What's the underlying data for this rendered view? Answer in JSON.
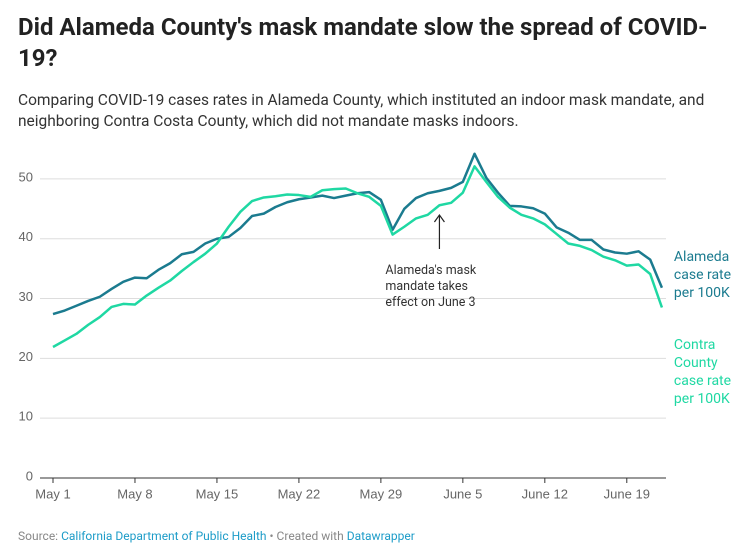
{
  "chart_data": {
    "type": "line",
    "title": "Did Alameda County's mask mandate slow the spread of COVID-19?",
    "subtitle": "Comparing COVID-19 cases rates in Alameda County, which instituted an indoor mask mandate, and neighboring Contra Costa County, which did not mandate masks indoors.",
    "x": [
      "May 1",
      "May 2",
      "May 3",
      "May 4",
      "May 5",
      "May 6",
      "May 7",
      "May 8",
      "May 9",
      "May 10",
      "May 11",
      "May 12",
      "May 13",
      "May 14",
      "May 15",
      "May 16",
      "May 17",
      "May 18",
      "May 19",
      "May 20",
      "May 21",
      "May 22",
      "May 23",
      "May 24",
      "May 25",
      "May 26",
      "May 27",
      "May 28",
      "May 29",
      "May 30",
      "May 31",
      "June 1",
      "June 2",
      "June 3",
      "June 4",
      "June 5",
      "June 6",
      "June 7",
      "June 8",
      "June 9",
      "June 10",
      "June 11",
      "June 12",
      "June 13",
      "June 14",
      "June 15",
      "June 16",
      "June 17",
      "June 18",
      "June 19",
      "June 20",
      "June 21",
      "June 22"
    ],
    "xticks": [
      "May 1",
      "May 8",
      "May 15",
      "May 22",
      "May 29",
      "June 5",
      "June 12",
      "June 19"
    ],
    "series": [
      {
        "name": "Alameda case rate per 100K",
        "color": "#1b7b8f",
        "values": [
          27.4,
          28.0,
          28.8,
          29.6,
          30.3,
          31.6,
          32.8,
          33.5,
          33.4,
          34.8,
          35.9,
          37.4,
          37.8,
          39.2,
          40.0,
          40.3,
          41.8,
          43.8,
          44.2,
          45.3,
          46.1,
          46.6,
          46.9,
          47.2,
          46.8,
          47.2,
          47.6,
          47.8,
          46.5,
          41.5,
          45.0,
          46.8,
          47.6,
          48.0,
          48.5,
          49.5,
          54.2,
          50.2,
          47.7,
          45.5,
          45.4,
          45.1,
          44.2,
          41.9,
          41.0,
          39.8,
          39.8,
          38.2,
          37.7,
          37.5,
          37.9,
          36.5,
          31.8
        ]
      },
      {
        "name": "Contra County case rate per 100K",
        "color": "#1fd8a3",
        "values": [
          21.9,
          23.0,
          24.1,
          25.6,
          26.9,
          28.6,
          29.1,
          29.0,
          30.5,
          31.8,
          33.0,
          34.6,
          36.1,
          37.5,
          39.2,
          42.0,
          44.5,
          46.3,
          46.9,
          47.1,
          47.4,
          47.3,
          47.0,
          48.1,
          48.3,
          48.4,
          47.6,
          47.0,
          45.5,
          40.7,
          42.0,
          43.4,
          44.0,
          45.6,
          46.0,
          47.7,
          52.1,
          49.5,
          47.0,
          45.2,
          44.0,
          43.4,
          42.4,
          40.8,
          39.2,
          38.8,
          38.1,
          37.0,
          36.4,
          35.5,
          35.7,
          34.1,
          28.5
        ]
      }
    ],
    "ylim": [
      0,
      55
    ],
    "yticks": [
      0,
      10,
      20,
      30,
      40,
      50
    ],
    "grid": true,
    "annotation": {
      "text": "Alameda's mask mandate takes effect on June 3",
      "x": "June 3"
    },
    "footer": {
      "source_label": "Source:",
      "source": "California Department of Public Health",
      "separator": "•",
      "created_label": "Created with",
      "tool": "Datawrapper"
    }
  }
}
